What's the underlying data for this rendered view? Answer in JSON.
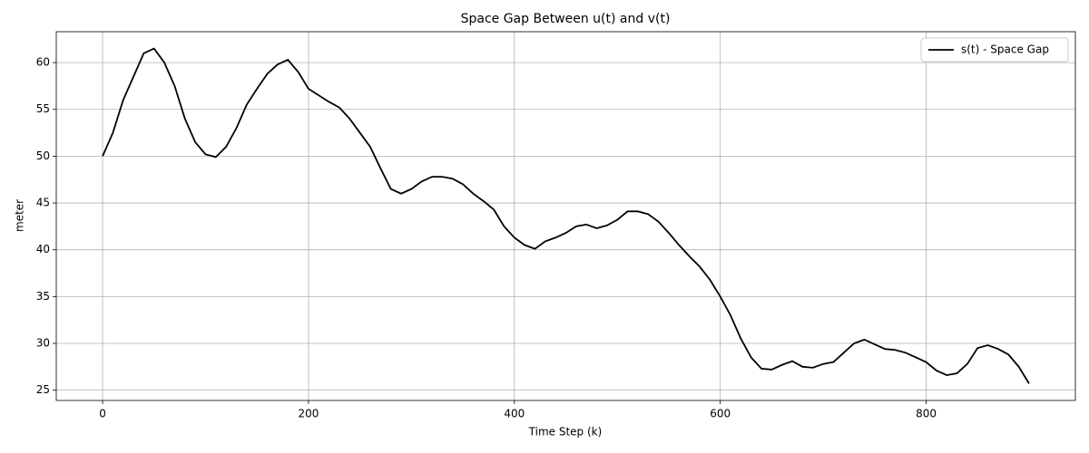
{
  "chart_data": {
    "type": "line",
    "title": "Space Gap Between u(t) and v(t)",
    "x_label": "Time Step (k)",
    "y_label": "meter",
    "x": [
      0,
      10,
      20,
      30,
      40,
      50,
      60,
      70,
      80,
      90,
      100,
      110,
      120,
      130,
      140,
      150,
      160,
      170,
      180,
      190,
      200,
      210,
      220,
      230,
      240,
      250,
      260,
      270,
      280,
      290,
      300,
      310,
      320,
      330,
      340,
      350,
      360,
      370,
      380,
      390,
      400,
      410,
      420,
      430,
      440,
      450,
      460,
      470,
      480,
      490,
      500,
      510,
      520,
      530,
      540,
      550,
      560,
      570,
      580,
      590,
      600,
      610,
      620,
      630,
      640,
      650,
      660,
      670,
      680,
      690,
      700,
      710,
      720,
      730,
      740,
      750,
      760,
      770,
      780,
      790,
      800,
      810,
      820,
      830,
      840,
      850,
      860,
      870,
      880,
      890,
      900
    ],
    "series": [
      {
        "name": "s(t) - Space Gap",
        "color": "#000000",
        "values": [
          50.0,
          52.5,
          56,
          58.5,
          61,
          61.5,
          60,
          57.5,
          54,
          51.5,
          50.2,
          49.9,
          51,
          53,
          55.5,
          57.2,
          58.8,
          59.8,
          60.3,
          59,
          57.2,
          56.5,
          55.8,
          55.2,
          54,
          52.5,
          51,
          48.7,
          46.5,
          46,
          46.5,
          47.3,
          47.8,
          47.8,
          47.6,
          47,
          46,
          45.2,
          44.3,
          42.5,
          41.3,
          40.5,
          40.1,
          40.9,
          41.3,
          41.8,
          42.5,
          42.7,
          42.3,
          42.6,
          43.2,
          44.1,
          44.1,
          43.8,
          43,
          41.8,
          40.5,
          39.3,
          38.2,
          36.8,
          35,
          33,
          30.5,
          28.5,
          27.3,
          27.2,
          27.7,
          28.1,
          27.5,
          27.4,
          27.8,
          28,
          29,
          30,
          30.4,
          29.9,
          29.4,
          29.3,
          29,
          28.5,
          28,
          27.1,
          26.6,
          26.8,
          27.8,
          29.5,
          29.8,
          29.4,
          28.8,
          27.5,
          25.7
        ]
      }
    ],
    "xlim": [
      -45,
      945
    ],
    "ylim": [
      23.9,
      63.3
    ],
    "xticks": [
      0,
      200,
      400,
      600,
      800
    ],
    "yticks": [
      25,
      30,
      35,
      40,
      45,
      50,
      55,
      60
    ],
    "grid": true,
    "legend": "upper-right"
  }
}
